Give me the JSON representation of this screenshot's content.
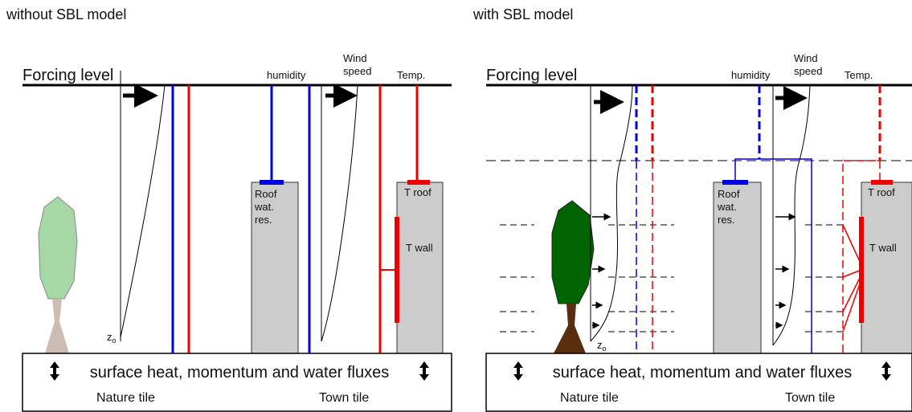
{
  "panels": [
    {
      "title": "without SBL model",
      "forcing": "Forcing level",
      "humidity": "humidity",
      "wind": [
        "Wind",
        "speed"
      ],
      "temp": "Temp.",
      "roof": [
        "Roof",
        "wat.",
        "res."
      ],
      "t_roof": "T roof",
      "t_wall": "T wall",
      "z0": {
        "base": "z",
        "sub": "o"
      },
      "fluxes": "surface heat, momentum and water fluxes",
      "nature": "Nature tile",
      "town": "Town tile"
    },
    {
      "title": "with SBL model",
      "forcing": "Forcing level",
      "humidity": "humidity",
      "wind": [
        "Wind",
        "speed"
      ],
      "temp": "Temp.",
      "roof": [
        "Roof",
        "wat.",
        "res."
      ],
      "t_roof": "T roof",
      "t_wall": "T wall",
      "z0": {
        "base": "z",
        "sub": "o"
      },
      "fluxes": "surface heat, momentum and water fluxes",
      "nature": "Nature tile",
      "town": "Town tile"
    }
  ]
}
